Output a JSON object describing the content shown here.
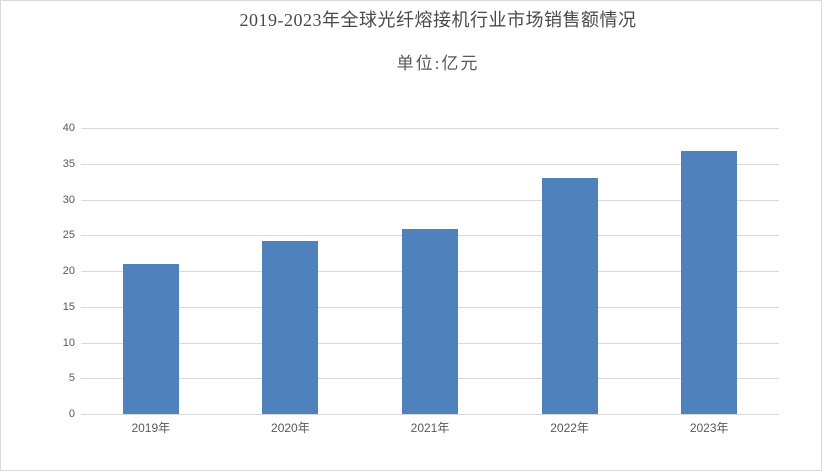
{
  "chart_data": {
    "type": "bar",
    "title": "2019-2023年全球光纤熔接机行业市场销售额情况",
    "subtitle": "单位:亿元",
    "categories": [
      "2019年",
      "2020年",
      "2021年",
      "2022年",
      "2023年"
    ],
    "values": [
      21,
      24.2,
      25.9,
      33,
      36.8
    ],
    "xlabel": "",
    "ylabel": "",
    "ylim": [
      0,
      40
    ],
    "ytick_step": 5,
    "ytick_labels": [
      "0",
      "5",
      "10",
      "15",
      "20",
      "25",
      "30",
      "35",
      "40"
    ],
    "grid": "horizontal",
    "legend": "none",
    "colors": {
      "bar_fill": "#4f81bd",
      "gridline": "#d9d9d9",
      "frame_border": "#d9d9d9",
      "title_text": "#4a4a4a",
      "axis_text": "#595959",
      "background": "#ffffff"
    }
  }
}
